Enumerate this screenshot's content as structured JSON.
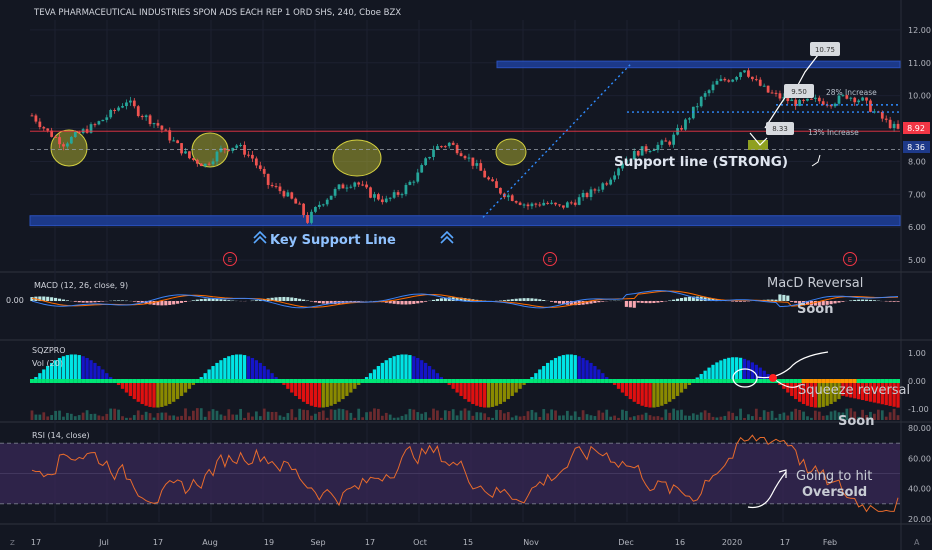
{
  "header": {
    "symbol_title": "TEVA PHARMACEUTICAL INDUSTRIES SPON ADS EACH REP 1 ORD SHS, 240, Cboe BZX"
  },
  "colors": {
    "background": "#131722",
    "up": "#26a69a",
    "down": "#ef5350",
    "zone_blue": "#1e3f9c",
    "highlight_yellow": "#c8c832",
    "sq_cyan": "#00e5e5",
    "sq_blue": "#1515c8",
    "sq_red": "#e01010",
    "sq_olive": "#8a8a00",
    "sq_green": "#00e676",
    "rsi_line": "#e86b2c",
    "rsi_band": "#3a2a5a",
    "macd_line": "#3b82f6",
    "signal_line": "#ff6d00",
    "price_tag_red": "#f23645",
    "price_tag_blue": "#1e3a8a"
  },
  "chart_data": [
    {
      "type": "candlestick",
      "pane": "price",
      "title": "TEVA PHARMACEUTICAL INDUSTRIES SPON ADS EACH REP 1 ORD SHS, 240, Cboe BZX",
      "y_axis_ticks": [
        "12.00",
        "11.00",
        "10.00",
        "9.00",
        "8.00",
        "7.00",
        "6.00",
        "5.00"
      ],
      "ylim": [
        4.7,
        12.3
      ],
      "x_axis_ticks": [
        "17",
        "Jul",
        "17",
        "Aug",
        "19",
        "Sep",
        "17",
        "Oct",
        "15",
        "Nov",
        "Dec",
        "16",
        "2020",
        "17",
        "Feb"
      ],
      "anchors": [
        {
          "x": 0,
          "y": 9.4
        },
        {
          "x": 4,
          "y": 8.9
        },
        {
          "x": 8,
          "y": 8.55
        },
        {
          "x": 12,
          "y": 8.85
        },
        {
          "x": 16,
          "y": 9.1
        },
        {
          "x": 20,
          "y": 9.45
        },
        {
          "x": 24,
          "y": 9.85
        },
        {
          "x": 27,
          "y": 9.5
        },
        {
          "x": 32,
          "y": 9.1
        },
        {
          "x": 36,
          "y": 8.6
        },
        {
          "x": 40,
          "y": 8.1
        },
        {
          "x": 44,
          "y": 7.9
        },
        {
          "x": 48,
          "y": 8.35
        },
        {
          "x": 52,
          "y": 8.5
        },
        {
          "x": 56,
          "y": 8.1
        },
        {
          "x": 60,
          "y": 7.3
        },
        {
          "x": 64,
          "y": 7.05
        },
        {
          "x": 68,
          "y": 6.6
        },
        {
          "x": 70,
          "y": 6.2
        },
        {
          "x": 73,
          "y": 6.7
        },
        {
          "x": 78,
          "y": 7.2
        },
        {
          "x": 82,
          "y": 7.4
        },
        {
          "x": 86,
          "y": 7.0
        },
        {
          "x": 90,
          "y": 6.8
        },
        {
          "x": 94,
          "y": 7.1
        },
        {
          "x": 98,
          "y": 7.6
        },
        {
          "x": 102,
          "y": 8.4
        },
        {
          "x": 106,
          "y": 8.55
        },
        {
          "x": 110,
          "y": 8.2
        },
        {
          "x": 114,
          "y": 7.7
        },
        {
          "x": 118,
          "y": 7.15
        },
        {
          "x": 122,
          "y": 6.9
        },
        {
          "x": 126,
          "y": 6.65
        },
        {
          "x": 130,
          "y": 6.75
        },
        {
          "x": 134,
          "y": 6.6
        },
        {
          "x": 138,
          "y": 6.8
        },
        {
          "x": 142,
          "y": 7.05
        },
        {
          "x": 146,
          "y": 7.4
        },
        {
          "x": 150,
          "y": 8.0
        },
        {
          "x": 154,
          "y": 8.3
        },
        {
          "x": 158,
          "y": 8.45
        },
        {
          "x": 162,
          "y": 8.6
        },
        {
          "x": 166,
          "y": 9.2
        },
        {
          "x": 170,
          "y": 9.9
        },
        {
          "x": 174,
          "y": 10.4
        },
        {
          "x": 178,
          "y": 10.55
        },
        {
          "x": 181,
          "y": 10.85
        },
        {
          "x": 183,
          "y": 10.5
        },
        {
          "x": 187,
          "y": 10.1
        },
        {
          "x": 191,
          "y": 9.9
        },
        {
          "x": 195,
          "y": 9.75
        },
        {
          "x": 199,
          "y": 9.85
        },
        {
          "x": 203,
          "y": 9.8
        },
        {
          "x": 207,
          "y": 10.0
        },
        {
          "x": 211,
          "y": 9.85
        },
        {
          "x": 214,
          "y": 9.5
        },
        {
          "x": 217,
          "y": 9.2
        },
        {
          "x": 220,
          "y": 8.95
        }
      ],
      "annotations": [
        {
          "text": "Key Support Line",
          "color": "#90c2ff"
        },
        {
          "text": "Support line (STRONG)",
          "color": "#e0e6f0"
        },
        {
          "text": "28% Increase",
          "color": "#b8c0cc"
        },
        {
          "text": "13% Increase",
          "color": "#b8c0cc"
        },
        {
          "text": "10.75",
          "kind": "callout"
        },
        {
          "text": "9.50",
          "kind": "callout"
        },
        {
          "text": "8.33",
          "kind": "callout"
        }
      ],
      "earnings_markers": [
        "E",
        "E",
        "E"
      ],
      "price_tags": [
        {
          "text": "8.92",
          "kind": "last-price"
        },
        {
          "text": "8.36",
          "kind": "support-level"
        }
      ],
      "zones": [
        {
          "name": "key-support-zone",
          "from": 6.05,
          "to": 6.35
        },
        {
          "name": "resistance-zone",
          "from": 10.85,
          "to": 11.05
        }
      ],
      "horizontal_levels": [
        8.92,
        8.36
      ],
      "target_levels": [
        10.75,
        9.5,
        8.33
      ]
    },
    {
      "type": "macd",
      "pane": "macd",
      "title": "MACD (12, 26, close, 9)",
      "y_axis_ticks": [
        "0.00"
      ],
      "annotations": [
        {
          "text": "MacD Reversal"
        },
        {
          "text": "Soon"
        }
      ]
    },
    {
      "type": "bar",
      "pane": "squeeze",
      "title": "SQZPRO",
      "subtitle": "Vol (20)",
      "y_axis_ticks": [
        "1.00",
        "0.00",
        "-1.00"
      ],
      "ylim": [
        -1.2,
        1.2
      ],
      "annotations": [
        {
          "text": "Squeeze reversal"
        },
        {
          "text": "Soon"
        }
      ]
    },
    {
      "type": "line",
      "pane": "rsi",
      "title": "RSI (14, close)",
      "y_axis_ticks": [
        "80.00",
        "60.00",
        "40.00",
        "20.00"
      ],
      "ylim": [
        18,
        82
      ],
      "bands": [
        70,
        30
      ],
      "annotations": [
        {
          "text": "Going to hit"
        },
        {
          "text": "Oversold"
        }
      ]
    }
  ],
  "bottom_bar": {
    "left_icon_letter": "Z",
    "right_letter": "A"
  }
}
